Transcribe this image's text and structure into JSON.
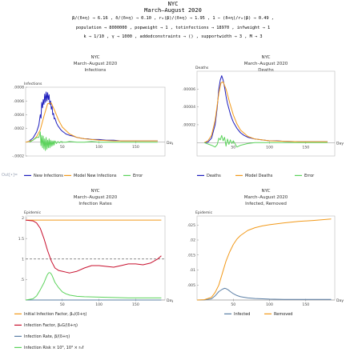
{
  "header": {
    "title": "NYC",
    "subtitle": "March–August 2020",
    "params_line1": "β/(δ+η) → 6.16 ,  δ/(δ+η) → 0.10 ,  r₀(β)/(δ+η) → 1.95 ,  1 − (δ+η)/r₀(β) → 0.49 ,",
    "params_line2": "population → 8000000 ,  popweight → 1 ,  totinfections → 18970 ,  infweight → 1",
    "params_line3": "k → 1/10 ,  γ → 1000 ,  addedconstraints → () ,  supportwidth → 3 ,  M → 3"
  },
  "output_label": "Out[•]=",
  "colors": {
    "blue": "#1d1dbd",
    "orange": "#f29a1b",
    "green": "#5bd35b",
    "red": "#c8102e",
    "steel": "#5b7fa6",
    "gray": "#666666"
  },
  "chart_data": [
    {
      "id": "infections",
      "type": "line",
      "title": "NYC",
      "subtitle": "March–August 2020",
      "subtitle2": "Infections",
      "ylabel": "Infections",
      "xlabel": "Day",
      "xlim": [
        0,
        190
      ],
      "ylim": [
        -0.0002,
        0.0008
      ],
      "xticks": [
        50,
        100,
        150
      ],
      "yticks": [
        -0.0002,
        0.0002,
        0.0004,
        0.0006,
        0.0008
      ],
      "series": [
        {
          "name": "New Infections",
          "color": "#1d1dbd",
          "x": [
            5,
            10,
            15,
            18,
            20,
            21,
            22,
            23,
            24,
            25,
            26,
            27,
            28,
            29,
            30,
            31,
            32,
            33,
            34,
            35,
            36,
            37,
            38,
            39,
            40,
            42,
            44,
            46,
            48,
            50,
            55,
            60,
            65,
            70,
            75,
            80,
            85,
            90,
            95,
            100,
            110,
            120,
            130,
            140,
            150,
            160,
            170,
            180
          ],
          "y": [
            2e-05,
            6e-05,
            0.00015,
            0.00025,
            0.0004,
            0.00035,
            0.00058,
            0.0005,
            0.00062,
            0.00055,
            0.0007,
            0.00058,
            0.00073,
            0.0006,
            0.00072,
            0.00062,
            0.00069,
            0.00055,
            0.0006,
            0.00048,
            0.00052,
            0.0004,
            0.00042,
            0.00034,
            0.00035,
            0.00028,
            0.00024,
            0.00021,
            0.00018,
            0.00016,
            0.00012,
            0.0001,
            9e-05,
            7e-05,
            6e-05,
            5e-05,
            5e-05,
            4e-05,
            4e-05,
            4e-05,
            3e-05,
            3e-05,
            2e-05,
            2e-05,
            2e-05,
            2e-05,
            2e-05,
            2e-05
          ]
        },
        {
          "name": "Model New Infections",
          "color": "#f29a1b",
          "x": [
            0,
            10,
            15,
            20,
            25,
            30,
            35,
            40,
            45,
            50,
            60,
            70,
            80,
            90,
            100,
            120,
            140,
            160,
            180
          ],
          "y": [
            0.0,
            3e-05,
            8e-05,
            0.00018,
            0.00038,
            0.00056,
            0.00057,
            0.00045,
            0.00032,
            0.00022,
            0.00012,
            7e-05,
            5e-05,
            4e-05,
            3e-05,
            2e-05,
            2e-05,
            2e-05,
            2e-05
          ]
        },
        {
          "name": "Error",
          "color": "#5bd35b",
          "x": [
            5,
            10,
            15,
            18,
            20,
            21,
            22,
            23,
            24,
            25,
            26,
            27,
            28,
            29,
            30,
            31,
            32,
            33,
            34,
            35,
            36,
            37,
            38,
            39,
            40,
            42,
            44,
            46,
            48,
            50,
            55,
            60,
            70,
            80,
            90,
            100,
            120,
            140,
            160,
            180
          ],
          "y": [
            0.0,
            3e-05,
            7e-05,
            7e-05,
            0.00015,
            -5e-05,
            0.0001,
            -8e-05,
            9e-05,
            -0.0001,
            5e-05,
            -0.00012,
            7e-05,
            -0.0001,
            3e-05,
            -8e-05,
            5e-05,
            -8e-05,
            3e-05,
            -6e-05,
            2e-05,
            -5e-05,
            2e-05,
            -4e-05,
            2e-05,
            -2e-05,
            1e-05,
            -1e-05,
            1e-05,
            0.0,
            0.0,
            1e-05,
            0.0,
            0.0,
            1e-05,
            0.0,
            0.0,
            0.0,
            0.0,
            0.0
          ]
        }
      ],
      "legend": [
        "New Infections",
        "Model New Infections",
        "Error"
      ]
    },
    {
      "id": "deaths",
      "type": "line",
      "title": "NYC",
      "subtitle": "March–August 2020",
      "subtitle2": "Deaths",
      "ylabel": "Deaths",
      "xlabel": "Day",
      "xlim": [
        0,
        190
      ],
      "ylim": [
        -1.5e-05,
        8e-05
      ],
      "xticks": [
        50,
        100,
        150
      ],
      "yticks": [
        2e-05,
        4e-05,
        6e-05
      ],
      "series": [
        {
          "name": "Deaths",
          "color": "#1d1dbd",
          "x": [
            10,
            15,
            20,
            25,
            28,
            30,
            32,
            34,
            36,
            38,
            40,
            42,
            44,
            46,
            48,
            50,
            55,
            60,
            65,
            70,
            80,
            90,
            100,
            110,
            120,
            140,
            160,
            180
          ],
          "y": [
            0.0,
            5e-07,
            5e-06,
            2e-05,
            4e-05,
            6e-05,
            7e-05,
            7.5e-05,
            7e-05,
            6.2e-05,
            5.2e-05,
            4.4e-05,
            3.8e-05,
            3.2e-05,
            2.7e-05,
            2.3e-05,
            1.6e-05,
            1.1e-05,
            8e-06,
            6e-06,
            4e-06,
            3e-06,
            2e-06,
            2e-06,
            1.5e-06,
            1e-06,
            1e-06,
            1e-06
          ]
        },
        {
          "name": "Model Deaths",
          "color": "#f29a1b",
          "x": [
            10,
            15,
            20,
            25,
            30,
            33,
            36,
            40,
            45,
            50,
            55,
            60,
            70,
            80,
            100,
            120,
            140,
            160,
            180
          ],
          "y": [
            0.0,
            2e-06,
            8e-06,
            2.5e-05,
            5.5e-05,
            6.7e-05,
            6.8e-05,
            6e-05,
            4.5e-05,
            3.1e-05,
            2.1e-05,
            1.4e-05,
            7e-06,
            4e-06,
            2e-06,
            1.5e-06,
            1e-06,
            1e-06,
            1e-06
          ]
        },
        {
          "name": "Error",
          "color": "#5bd35b",
          "x": [
            10,
            20,
            25,
            28,
            30,
            32,
            34,
            36,
            38,
            40,
            42,
            44,
            46,
            48,
            50,
            55,
            60,
            70,
            80,
            100,
            120,
            140,
            160,
            180
          ],
          "y": [
            0.0,
            -3e-06,
            -5e-06,
            -2e-06,
            5e-06,
            3e-06,
            8e-06,
            2e-06,
            6e-06,
            -4e-06,
            4e-06,
            -2e-06,
            3e-06,
            -1e-06,
            2e-06,
            -5e-06,
            -3e-06,
            -1e-06,
            0.0,
            0.0,
            0.0,
            0.0,
            0.0,
            0.0
          ]
        }
      ],
      "legend": [
        "Deaths",
        "Model Deaths",
        "Error"
      ]
    },
    {
      "id": "rates",
      "type": "line",
      "title": "NYC",
      "subtitle": "March–August 2020",
      "subtitle2": "Infection Rates",
      "ylabel": "Epidemic",
      "xlabel": "Day",
      "xlim": [
        0,
        190
      ],
      "ylim": [
        0,
        2.05
      ],
      "xticks": [
        50,
        100,
        150
      ],
      "yticks": [
        0.5,
        1.0,
        1.5,
        2.0
      ],
      "reference_line": 1.0,
      "series": [
        {
          "name": "Initial Infection Factor",
          "color": "#f29a1b",
          "x": [
            0,
            185
          ],
          "y": [
            1.95,
            1.95
          ]
        },
        {
          "name": "Infection Factor",
          "color": "#c8102e",
          "x": [
            0,
            10,
            15,
            20,
            25,
            30,
            35,
            40,
            45,
            50,
            55,
            60,
            70,
            80,
            90,
            100,
            110,
            120,
            130,
            140,
            150,
            160,
            170,
            180,
            185
          ],
          "y": [
            1.95,
            1.93,
            1.88,
            1.75,
            1.5,
            1.2,
            0.95,
            0.78,
            0.72,
            0.7,
            0.68,
            0.66,
            0.7,
            0.78,
            0.84,
            0.84,
            0.82,
            0.8,
            0.84,
            0.88,
            0.88,
            0.86,
            0.9,
            1.0,
            1.08
          ]
        },
        {
          "name": "Infection Rate",
          "color": "#5b7fa6",
          "x": [
            0,
            185
          ],
          "y": [
            0.0,
            0.0
          ]
        },
        {
          "name": "Infection Risk",
          "color": "#5bd35b",
          "x": [
            0,
            10,
            15,
            20,
            25,
            28,
            30,
            32,
            34,
            36,
            40,
            45,
            50,
            55,
            60,
            70,
            80,
            100,
            120,
            140,
            160,
            185
          ],
          "y": [
            0.0,
            0.03,
            0.1,
            0.25,
            0.42,
            0.55,
            0.63,
            0.67,
            0.66,
            0.6,
            0.43,
            0.3,
            0.2,
            0.15,
            0.12,
            0.09,
            0.08,
            0.07,
            0.06,
            0.05,
            0.05,
            0.05
          ]
        }
      ],
      "legend": [
        "Initial Infection Factor, β₀/(δ+η)",
        "Infection Factor, β₀G/(δ+η)",
        "Infection Rate, β/(δ+η)",
        "Infection Risk × 10³, 10³ × r₀f"
      ]
    },
    {
      "id": "infected_removed",
      "type": "line",
      "title": "NYC",
      "subtitle": "March–August 2020",
      "subtitle2": "Infected, Removed",
      "ylabel": "Epidemic",
      "xlabel": "Day",
      "xlim": [
        0,
        190
      ],
      "ylim": [
        0,
        0.028
      ],
      "xticks": [
        50,
        100,
        150
      ],
      "yticks": [
        0.005,
        0.01,
        0.015,
        0.02,
        0.025
      ],
      "series": [
        {
          "name": "Infected",
          "color": "#5b7fa6",
          "x": [
            0,
            10,
            20,
            25,
            30,
            35,
            38,
            40,
            43,
            46,
            50,
            55,
            60,
            70,
            80,
            90,
            100,
            120,
            140,
            160,
            185
          ],
          "y": [
            0.0,
            3e-05,
            0.0004,
            0.0014,
            0.0028,
            0.0036,
            0.0039,
            0.0038,
            0.0034,
            0.0028,
            0.0021,
            0.0015,
            0.0011,
            0.0007,
            0.0005,
            0.0004,
            0.0003,
            0.0002,
            0.0002,
            0.0002,
            0.0002
          ]
        },
        {
          "name": "Removed",
          "color": "#f29a1b",
          "x": [
            0,
            10,
            20,
            25,
            30,
            35,
            40,
            45,
            50,
            55,
            60,
            70,
            80,
            90,
            100,
            120,
            140,
            160,
            185
          ],
          "y": [
            0.0,
            0.0001,
            0.0009,
            0.0025,
            0.005,
            0.009,
            0.013,
            0.016,
            0.0185,
            0.0203,
            0.0215,
            0.0232,
            0.0241,
            0.0247,
            0.0251,
            0.0257,
            0.0262,
            0.0265,
            0.027
          ]
        }
      ],
      "legend": [
        "Infected",
        "Removed"
      ]
    }
  ]
}
